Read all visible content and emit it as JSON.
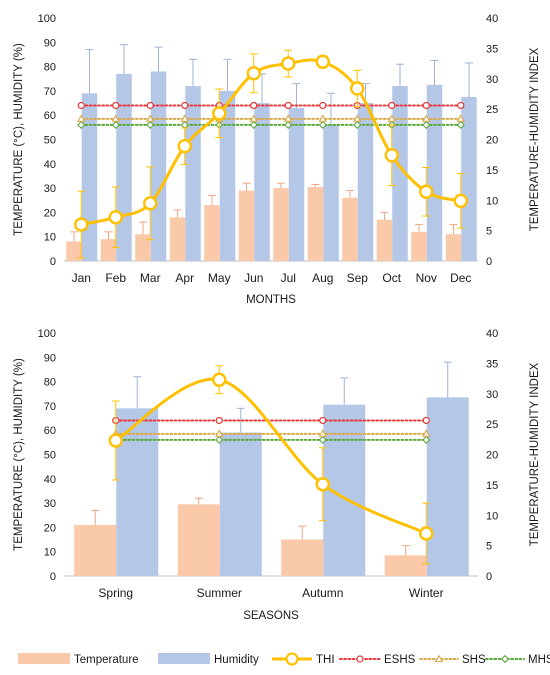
{
  "legend": [
    {
      "key": "temperature",
      "label": "Temperature",
      "type": "bar",
      "color": "#f9c9a9"
    },
    {
      "key": "humidity",
      "label": "Humidity",
      "type": "bar",
      "color": "#b4c7e7"
    },
    {
      "key": "thi",
      "label": "THI",
      "type": "line",
      "color": "#ffc000"
    },
    {
      "key": "eshs",
      "label": "ESHS",
      "type": "dotted-circle",
      "color": "#e8383b"
    },
    {
      "key": "shs",
      "label": "SHS",
      "type": "dotted-triangle",
      "color": "#d9a94a"
    },
    {
      "key": "mhs",
      "label": "MHS",
      "type": "dotted-diamond",
      "color": "#5ba83a"
    }
  ],
  "chart_data": [
    {
      "type": "bar",
      "xlabel": "MONTHS",
      "ylabel": "TEMPERATURE (°C), HUMIDITY (%)",
      "y2label": "TEMPERATURE-HUMIDITY INDEX",
      "ylim": [
        0,
        100
      ],
      "y2lim": [
        0,
        40
      ],
      "yticks": [
        0,
        10,
        20,
        30,
        40,
        50,
        60,
        70,
        80,
        90,
        100
      ],
      "y2ticks": [
        0,
        5,
        10,
        15,
        20,
        25,
        30,
        35,
        40
      ],
      "categories": [
        "Jan",
        "Feb",
        "Mar",
        "Apr",
        "May",
        "Jun",
        "Jul",
        "Aug",
        "Sep",
        "Oct",
        "Nov",
        "Dec"
      ],
      "series": [
        {
          "name": "Temperature",
          "axis": "left",
          "values": [
            8,
            9,
            11,
            18,
            23,
            29,
            30,
            30.5,
            26,
            17,
            12,
            11
          ],
          "error": [
            4,
            3,
            5,
            3,
            4,
            3,
            2,
            1,
            3,
            3,
            3,
            4
          ]
        },
        {
          "name": "Humidity",
          "axis": "left",
          "values": [
            69,
            77,
            78,
            72,
            70,
            65,
            63,
            56,
            65,
            72,
            72.5,
            67.5
          ],
          "error": [
            18,
            12,
            10,
            11,
            13,
            12,
            10,
            13,
            8,
            9,
            10,
            14
          ]
        },
        {
          "name": "THI",
          "axis": "right",
          "values": [
            6,
            7.2,
            9.5,
            18.9,
            24.3,
            30.9,
            32.5,
            32.8,
            28.4,
            17.4,
            11.4,
            9.9
          ],
          "error": [
            5.5,
            5,
            6,
            3,
            4,
            3.2,
            2.2,
            1,
            3,
            5,
            4,
            4.5
          ]
        },
        {
          "name": "ESHS",
          "axis": "right",
          "values": [
            25.6,
            25.6,
            25.6,
            25.6,
            25.6,
            25.6,
            25.6,
            25.6,
            25.6,
            25.6,
            25.6,
            25.6
          ]
        },
        {
          "name": "SHS",
          "axis": "right",
          "values": [
            23.4,
            23.4,
            23.4,
            23.4,
            23.4,
            23.4,
            23.4,
            23.4,
            23.4,
            23.4,
            23.4,
            23.4
          ]
        },
        {
          "name": "MHS",
          "axis": "right",
          "values": [
            22.4,
            22.4,
            22.4,
            22.4,
            22.4,
            22.4,
            22.4,
            22.4,
            22.4,
            22.4,
            22.4,
            22.4
          ]
        }
      ]
    },
    {
      "type": "bar",
      "xlabel": "SEASONS",
      "ylabel": "TEMPERATURE (°C), HUMIDITY (%)",
      "y2label": "TEMPERATURE-HUMIDITY INDEX",
      "ylim": [
        0,
        100
      ],
      "y2lim": [
        0,
        40
      ],
      "yticks": [
        0,
        10,
        20,
        30,
        40,
        50,
        60,
        70,
        80,
        90,
        100
      ],
      "y2ticks": [
        0,
        5,
        10,
        15,
        20,
        25,
        30,
        35,
        40
      ],
      "categories": [
        "Spring",
        "Summer",
        "Autumn",
        "Winter"
      ],
      "series": [
        {
          "name": "Temperature",
          "axis": "left",
          "values": [
            21,
            29.5,
            15,
            8.5
          ],
          "error": [
            6,
            2.5,
            5.5,
            4
          ]
        },
        {
          "name": "Humidity",
          "axis": "left",
          "values": [
            69,
            59,
            70.5,
            73.5
          ],
          "error": [
            13,
            10,
            11,
            14.5
          ]
        },
        {
          "name": "THI",
          "axis": "right",
          "values": [
            22.3,
            32.3,
            15.1,
            7
          ],
          "error": [
            6.5,
            2.3,
            6,
            5
          ]
        },
        {
          "name": "ESHS",
          "axis": "right",
          "values": [
            25.6,
            25.6,
            25.6,
            25.6
          ]
        },
        {
          "name": "SHS",
          "axis": "right",
          "values": [
            23.4,
            23.4,
            23.4,
            23.4
          ]
        },
        {
          "name": "MHS",
          "axis": "right",
          "values": [
            22.4,
            22.4,
            22.4,
            22.4
          ]
        }
      ]
    }
  ]
}
